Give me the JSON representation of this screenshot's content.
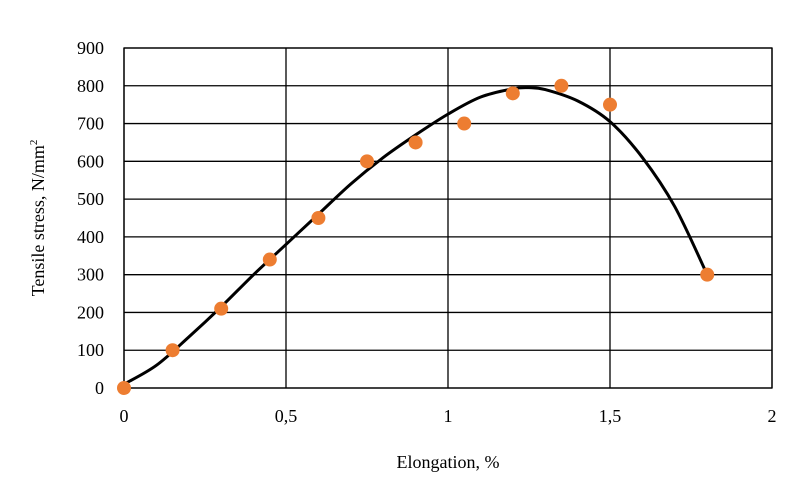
{
  "chart_data": {
    "type": "scatter",
    "title": "",
    "xlabel": "Elongation, %",
    "ylabel_text": "Tensile stress, N/mm",
    "ylabel_superscript": "2",
    "xlim": [
      0,
      2
    ],
    "ylim": [
      0,
      900
    ],
    "x_ticks": [
      0,
      0.5,
      1,
      1.5,
      2
    ],
    "x_tick_labels": [
      "0",
      "0,5",
      "1",
      "1,5",
      "2"
    ],
    "y_ticks": [
      0,
      100,
      200,
      300,
      400,
      500,
      600,
      700,
      800,
      900
    ],
    "y_tick_labels": [
      "0",
      "100",
      "200",
      "300",
      "400",
      "500",
      "600",
      "700",
      "800",
      "900"
    ],
    "grid": true,
    "legend": "none",
    "series": [
      {
        "kind": "points",
        "color": "#ED7D31",
        "x": [
          0,
          0.15,
          0.3,
          0.45,
          0.6,
          0.75,
          0.9,
          1.05,
          1.2,
          1.35,
          1.5,
          1.8
        ],
        "y": [
          0,
          100,
          210,
          340,
          450,
          600,
          650,
          700,
          780,
          800,
          750,
          300
        ]
      },
      {
        "kind": "fit-curve",
        "color": "#000000",
        "x": [
          0,
          0.1,
          0.2,
          0.3,
          0.4,
          0.5,
          0.6,
          0.7,
          0.8,
          0.9,
          1.0,
          1.1,
          1.2,
          1.25,
          1.3,
          1.4,
          1.5,
          1.6,
          1.7,
          1.8
        ],
        "y": [
          10,
          60,
          135,
          215,
          300,
          380,
          460,
          540,
          610,
          670,
          725,
          770,
          792,
          795,
          790,
          760,
          705,
          610,
          480,
          300
        ]
      }
    ]
  }
}
